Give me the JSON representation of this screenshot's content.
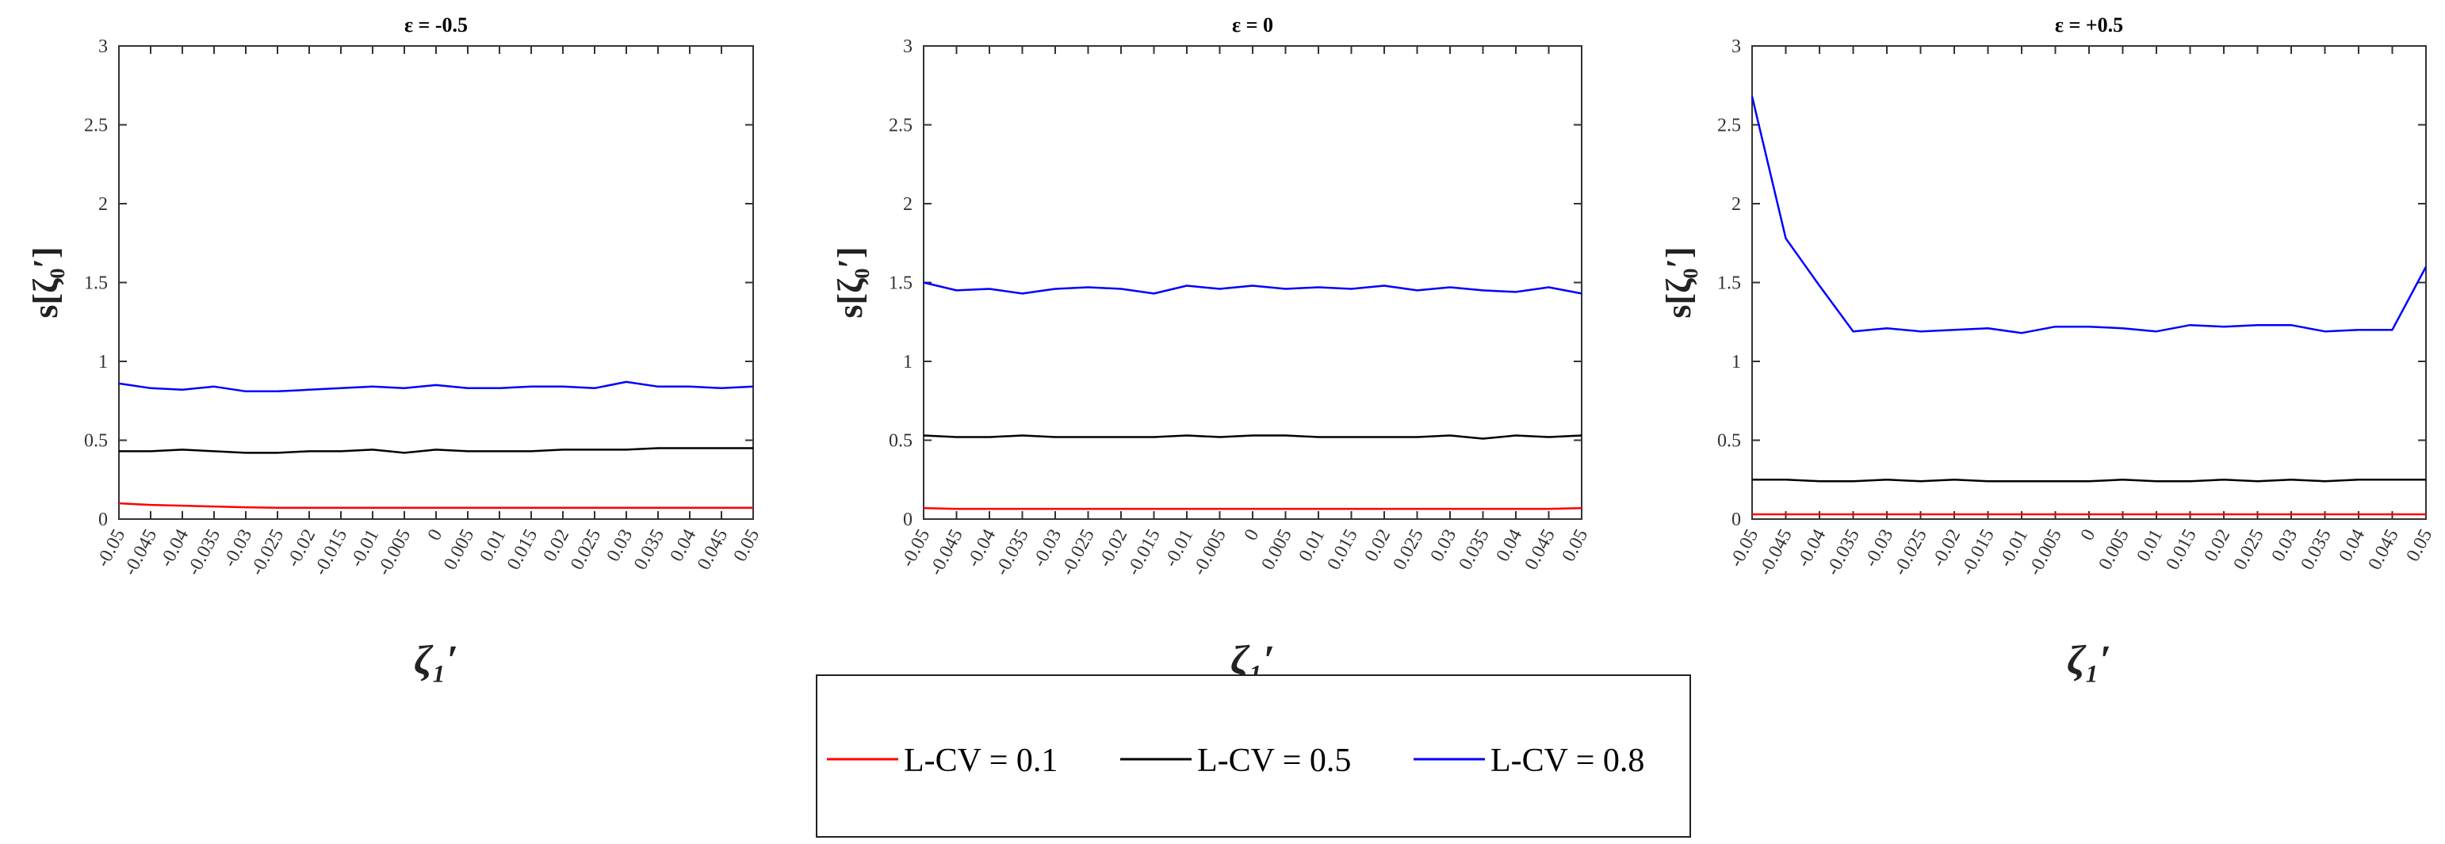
{
  "chart_data": [
    {
      "type": "line",
      "title": "ε = -0.5",
      "xlabel": "ζ₁′",
      "ylabel": "s[ζ₀′]",
      "ylim": [
        0,
        3
      ],
      "yticks": [
        "0",
        "0.5",
        "1",
        "1.5",
        "2",
        "2.5",
        "3"
      ],
      "grid": false,
      "x": [
        "-0.05",
        "-0.045",
        "-0.04",
        "-0.035",
        "-0.03",
        "-0.025",
        "-0.02",
        "-0.015",
        "-0.01",
        "-0.005",
        "0",
        "0.005",
        "0.01",
        "0.015",
        "0.02",
        "0.025",
        "0.03",
        "0.035",
        "0.04",
        "0.045",
        "0.05"
      ],
      "series": [
        {
          "name": "L-CV = 0.1",
          "color": "#ff0000",
          "values": [
            0.1,
            0.09,
            0.085,
            0.08,
            0.075,
            0.072,
            0.072,
            0.072,
            0.072,
            0.072,
            0.072,
            0.072,
            0.072,
            0.072,
            0.072,
            0.072,
            0.072,
            0.072,
            0.072,
            0.072,
            0.072
          ]
        },
        {
          "name": "L-CV = 0.5",
          "color": "#000000",
          "values": [
            0.43,
            0.43,
            0.44,
            0.43,
            0.42,
            0.42,
            0.43,
            0.43,
            0.44,
            0.42,
            0.44,
            0.43,
            0.43,
            0.43,
            0.44,
            0.44,
            0.44,
            0.45,
            0.45,
            0.45,
            0.45
          ]
        },
        {
          "name": "L-CV = 0.8",
          "color": "#0000ff",
          "values": [
            0.86,
            0.83,
            0.82,
            0.84,
            0.81,
            0.81,
            0.82,
            0.83,
            0.84,
            0.83,
            0.85,
            0.83,
            0.83,
            0.84,
            0.84,
            0.83,
            0.87,
            0.84,
            0.84,
            0.83,
            0.84
          ]
        }
      ]
    },
    {
      "type": "line",
      "title": "ε = 0",
      "xlabel": "ζ₁′",
      "ylabel": "s[ζ₀′]",
      "ylim": [
        0,
        3
      ],
      "yticks": [
        "0",
        "0.5",
        "1",
        "1.5",
        "2",
        "2.5",
        "3"
      ],
      "grid": false,
      "x": [
        "-0.05",
        "-0.045",
        "-0.04",
        "-0.035",
        "-0.03",
        "-0.025",
        "-0.02",
        "-0.015",
        "-0.01",
        "-0.005",
        "0",
        "0.005",
        "0.01",
        "0.015",
        "0.02",
        "0.025",
        "0.03",
        "0.035",
        "0.04",
        "0.045",
        "0.05"
      ],
      "series": [
        {
          "name": "L-CV = 0.1",
          "color": "#ff0000",
          "values": [
            0.07,
            0.065,
            0.065,
            0.065,
            0.065,
            0.065,
            0.065,
            0.065,
            0.065,
            0.065,
            0.065,
            0.065,
            0.065,
            0.065,
            0.065,
            0.065,
            0.065,
            0.065,
            0.065,
            0.065,
            0.07
          ]
        },
        {
          "name": "L-CV = 0.5",
          "color": "#000000",
          "values": [
            0.53,
            0.52,
            0.52,
            0.53,
            0.52,
            0.52,
            0.52,
            0.52,
            0.53,
            0.52,
            0.53,
            0.53,
            0.52,
            0.52,
            0.52,
            0.52,
            0.53,
            0.51,
            0.53,
            0.52,
            0.53
          ]
        },
        {
          "name": "L-CV = 0.8",
          "color": "#0000ff",
          "values": [
            1.5,
            1.45,
            1.46,
            1.43,
            1.46,
            1.47,
            1.46,
            1.43,
            1.48,
            1.46,
            1.48,
            1.46,
            1.47,
            1.46,
            1.48,
            1.45,
            1.47,
            1.45,
            1.44,
            1.47,
            1.43
          ]
        }
      ]
    },
    {
      "type": "line",
      "title": "ε = +0.5",
      "xlabel": "ζ₁′",
      "ylabel": "s[ζ₀′]",
      "ylim": [
        0,
        3
      ],
      "yticks": [
        "0",
        "0.5",
        "1",
        "1.5",
        "2",
        "2.5",
        "3"
      ],
      "grid": false,
      "x": [
        "-0.05",
        "-0.045",
        "-0.04",
        "-0.035",
        "-0.03",
        "-0.025",
        "-0.02",
        "-0.015",
        "-0.01",
        "-0.005",
        "0",
        "0.005",
        "0.01",
        "0.015",
        "0.02",
        "0.025",
        "0.03",
        "0.035",
        "0.04",
        "0.045",
        "0.05"
      ],
      "series": [
        {
          "name": "L-CV = 0.1",
          "color": "#ff0000",
          "values": [
            0.03,
            0.03,
            0.03,
            0.03,
            0.03,
            0.03,
            0.03,
            0.03,
            0.03,
            0.03,
            0.03,
            0.03,
            0.03,
            0.03,
            0.03,
            0.03,
            0.03,
            0.03,
            0.03,
            0.03,
            0.03
          ]
        },
        {
          "name": "L-CV = 0.5",
          "color": "#000000",
          "values": [
            0.25,
            0.25,
            0.24,
            0.24,
            0.25,
            0.24,
            0.25,
            0.24,
            0.24,
            0.24,
            0.24,
            0.25,
            0.24,
            0.24,
            0.25,
            0.24,
            0.25,
            0.24,
            0.25,
            0.25,
            0.25
          ]
        },
        {
          "name": "L-CV = 0.8",
          "color": "#0000ff",
          "values": [
            2.68,
            1.78,
            1.48,
            1.19,
            1.21,
            1.19,
            1.2,
            1.21,
            1.18,
            1.22,
            1.22,
            1.21,
            1.19,
            1.23,
            1.22,
            1.23,
            1.23,
            1.19,
            1.2,
            1.2,
            1.6
          ]
        }
      ]
    }
  ],
  "legend": {
    "placement": "bottom-center",
    "entries": [
      {
        "label": "L-CV = 0.1",
        "color": "#ff0000"
      },
      {
        "label": "L-CV = 0.5",
        "color": "#000000"
      },
      {
        "label": "L-CV = 0.8",
        "color": "#0000ff"
      }
    ]
  }
}
